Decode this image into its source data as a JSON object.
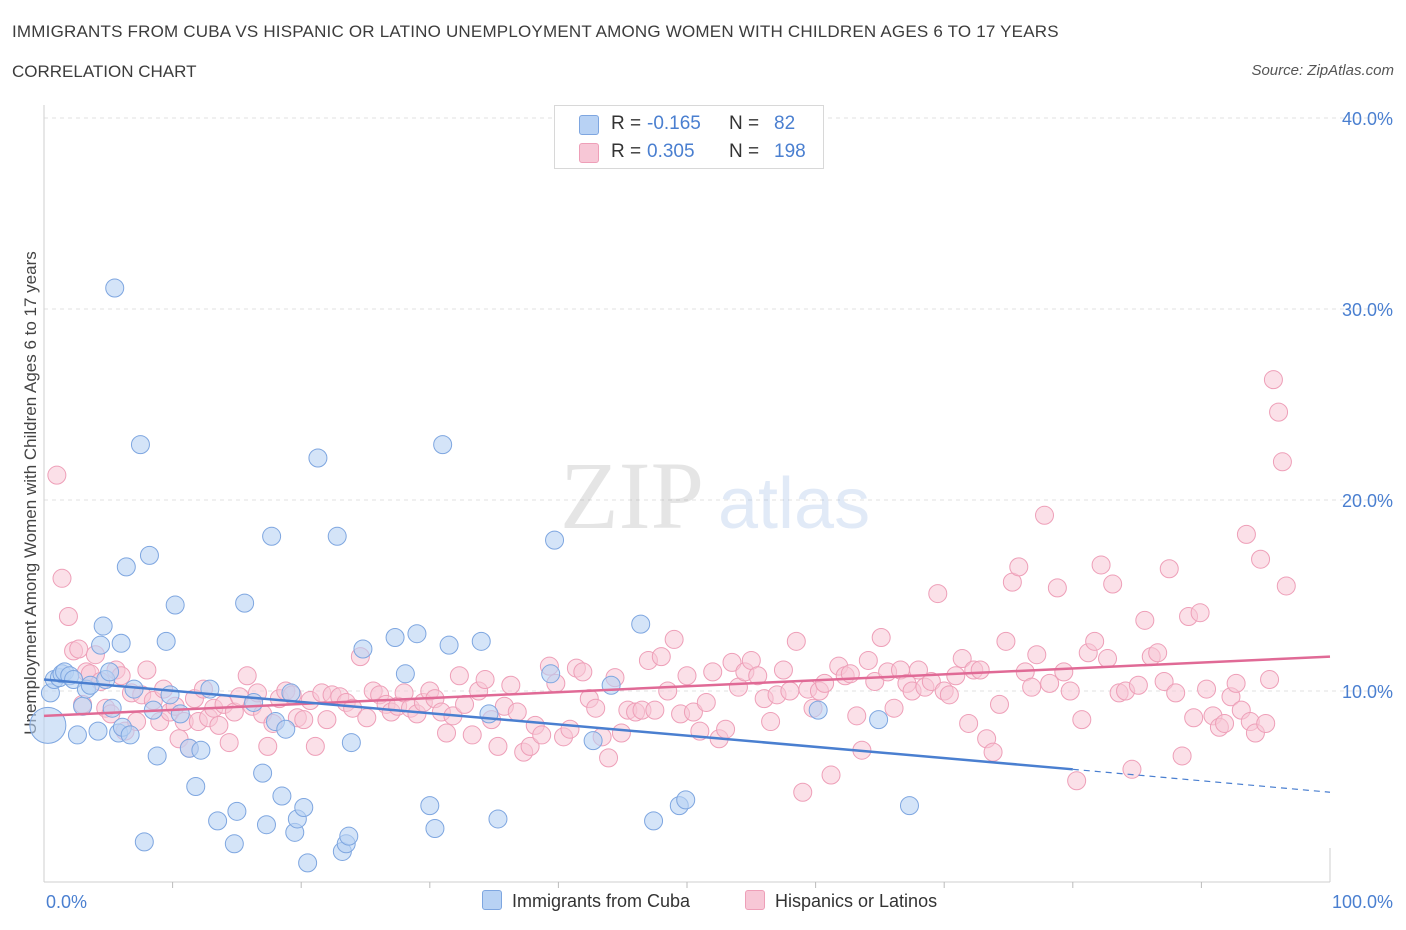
{
  "header": {
    "title": "IMMIGRANTS FROM CUBA VS HISPANIC OR LATINO UNEMPLOYMENT AMONG WOMEN WITH CHILDREN AGES 6 TO 17 YEARS",
    "subtitle": "CORRELATION CHART",
    "source": "Source: ZipAtlas.com"
  },
  "legend": {
    "rows": [
      {
        "r_label": "R =",
        "r_value": "-0.165",
        "n_label": "N =",
        "n_value": "82"
      },
      {
        "r_label": "R =",
        "r_value": "0.305",
        "n_label": "N =",
        "n_value": "198"
      }
    ]
  },
  "bottom_legend": {
    "cuba": "Immigrants from Cuba",
    "hispanic": "Hispanics or Latinos"
  },
  "watermark": {
    "zip": "ZIP",
    "atlas": "atlas"
  },
  "colors": {
    "blue": "#4a7fd0",
    "blue_fill": "#b8d2f4",
    "blue_stroke": "#7ea6e0",
    "pink": "#e06a96",
    "pink_fill": "#f7c7d6",
    "pink_stroke": "#ee9fb8"
  },
  "chart_data": {
    "type": "scatter",
    "title": "IMMIGRANTS FROM CUBA VS HISPANIC OR LATINO UNEMPLOYMENT AMONG WOMEN WITH CHILDREN AGES 6 TO 17 YEARS",
    "ylabel": "Unemployment Among Women with Children Ages 6 to 17 years",
    "xlabel": "",
    "xlim": [
      0,
      100
    ],
    "ylim": [
      0,
      40
    ],
    "x_tick_labels": [
      "0.0%",
      "100.0%"
    ],
    "y_ticks": [
      10,
      20,
      30,
      40
    ],
    "y_tick_labels": [
      "10.0%",
      "20.0%",
      "30.0%",
      "40.0%"
    ],
    "grid": true,
    "legend_placement": "top-center",
    "series": [
      {
        "name": "Immigrants from Cuba",
        "r": -0.165,
        "n": 82,
        "trend": {
          "x0": 0,
          "y0": 10.6,
          "x1": 80,
          "y1": 5.9,
          "dash_to_x": 100,
          "dash_to_y": 4.7
        },
        "points": [
          [
            0.3,
            8.2
          ],
          [
            0.5,
            9.9
          ],
          [
            0.8,
            10.6
          ],
          [
            1.2,
            10.7
          ],
          [
            1.4,
            10.9
          ],
          [
            1.6,
            11.0
          ],
          [
            2.0,
            10.8
          ],
          [
            2.3,
            10.6
          ],
          [
            2.6,
            7.7
          ],
          [
            3.0,
            9.2
          ],
          [
            3.3,
            10.1
          ],
          [
            3.6,
            10.3
          ],
          [
            4.2,
            7.9
          ],
          [
            4.4,
            12.4
          ],
          [
            4.6,
            13.4
          ],
          [
            4.8,
            10.6
          ],
          [
            5.1,
            11.0
          ],
          [
            5.3,
            9.1
          ],
          [
            5.5,
            31.1
          ],
          [
            5.8,
            7.8
          ],
          [
            6.0,
            12.5
          ],
          [
            6.1,
            8.1
          ],
          [
            6.4,
            16.5
          ],
          [
            6.7,
            7.7
          ],
          [
            7.0,
            10.1
          ],
          [
            7.5,
            22.9
          ],
          [
            7.8,
            2.1
          ],
          [
            8.2,
            17.1
          ],
          [
            8.5,
            9.0
          ],
          [
            8.8,
            6.6
          ],
          [
            9.5,
            12.6
          ],
          [
            9.8,
            9.8
          ],
          [
            10.2,
            14.5
          ],
          [
            10.6,
            8.8
          ],
          [
            11.3,
            7.0
          ],
          [
            11.8,
            5.0
          ],
          [
            12.2,
            6.9
          ],
          [
            12.9,
            10.1
          ],
          [
            13.5,
            3.2
          ],
          [
            14.8,
            2.0
          ],
          [
            15.0,
            3.7
          ],
          [
            15.6,
            14.6
          ],
          [
            16.3,
            9.4
          ],
          [
            17.0,
            5.7
          ],
          [
            17.3,
            3.0
          ],
          [
            17.7,
            18.1
          ],
          [
            18.0,
            8.4
          ],
          [
            18.5,
            4.5
          ],
          [
            18.8,
            8.0
          ],
          [
            19.2,
            9.9
          ],
          [
            19.5,
            2.6
          ],
          [
            19.7,
            3.3
          ],
          [
            20.2,
            3.9
          ],
          [
            20.5,
            1.0
          ],
          [
            21.3,
            22.2
          ],
          [
            22.8,
            18.1
          ],
          [
            23.2,
            1.6
          ],
          [
            23.5,
            2.0
          ],
          [
            23.7,
            2.4
          ],
          [
            23.9,
            7.3
          ],
          [
            24.8,
            12.2
          ],
          [
            27.3,
            12.8
          ],
          [
            28.1,
            10.9
          ],
          [
            29.0,
            13.0
          ],
          [
            30.0,
            4.0
          ],
          [
            30.4,
            2.8
          ],
          [
            31.0,
            22.9
          ],
          [
            31.5,
            12.4
          ],
          [
            34.0,
            12.6
          ],
          [
            34.6,
            8.8
          ],
          [
            35.3,
            3.3
          ],
          [
            39.4,
            10.9
          ],
          [
            39.7,
            17.9
          ],
          [
            42.7,
            7.4
          ],
          [
            44.1,
            10.3
          ],
          [
            46.4,
            13.5
          ],
          [
            47.4,
            3.2
          ],
          [
            49.4,
            4.0
          ],
          [
            49.9,
            4.3
          ],
          [
            60.2,
            9.0
          ],
          [
            64.9,
            8.5
          ],
          [
            67.3,
            4.0
          ]
        ]
      },
      {
        "name": "Hispanics or Latinos",
        "r": 0.305,
        "n": 198,
        "trend": {
          "x0": 0,
          "y0": 8.7,
          "x1": 100,
          "y1": 11.8
        },
        "points": [
          [
            1.0,
            21.3
          ],
          [
            1.4,
            15.9
          ],
          [
            1.9,
            13.9
          ],
          [
            2.3,
            12.1
          ],
          [
            2.7,
            12.2
          ],
          [
            3.0,
            9.3
          ],
          [
            3.3,
            11.0
          ],
          [
            3.6,
            10.9
          ],
          [
            4.0,
            11.9
          ],
          [
            4.4,
            10.5
          ],
          [
            4.8,
            9.1
          ],
          [
            5.2,
            8.8
          ],
          [
            5.6,
            11.1
          ],
          [
            6.0,
            10.8
          ],
          [
            6.3,
            7.9
          ],
          [
            6.8,
            9.9
          ],
          [
            7.2,
            8.4
          ],
          [
            7.6,
            9.8
          ],
          [
            8.0,
            11.1
          ],
          [
            8.5,
            9.5
          ],
          [
            9.0,
            8.4
          ],
          [
            9.3,
            10.1
          ],
          [
            9.8,
            8.9
          ],
          [
            10.2,
            9.2
          ],
          [
            10.5,
            7.5
          ],
          [
            10.9,
            8.4
          ],
          [
            11.3,
            7.0
          ],
          [
            11.7,
            9.6
          ],
          [
            12.0,
            8.4
          ],
          [
            12.4,
            10.1
          ],
          [
            12.8,
            8.6
          ],
          [
            13.2,
            9.1
          ],
          [
            13.6,
            8.2
          ],
          [
            14.0,
            9.3
          ],
          [
            14.4,
            7.3
          ],
          [
            14.8,
            8.9
          ],
          [
            15.2,
            9.7
          ],
          [
            15.8,
            10.8
          ],
          [
            16.2,
            9.2
          ],
          [
            16.6,
            9.9
          ],
          [
            17.0,
            8.8
          ],
          [
            17.4,
            7.1
          ],
          [
            17.8,
            8.3
          ],
          [
            18.3,
            9.6
          ],
          [
            18.8,
            10.0
          ],
          [
            19.3,
            9.8
          ],
          [
            19.7,
            8.6
          ],
          [
            20.2,
            8.5
          ],
          [
            20.7,
            9.5
          ],
          [
            21.1,
            7.1
          ],
          [
            21.6,
            9.9
          ],
          [
            22.0,
            8.5
          ],
          [
            22.4,
            9.8
          ],
          [
            23.0,
            9.7
          ],
          [
            23.5,
            9.4
          ],
          [
            24.0,
            9.1
          ],
          [
            24.6,
            11.8
          ],
          [
            25.1,
            8.6
          ],
          [
            25.6,
            10.0
          ],
          [
            26.1,
            9.8
          ],
          [
            26.6,
            9.3
          ],
          [
            27.0,
            8.9
          ],
          [
            27.5,
            9.2
          ],
          [
            28.0,
            9.9
          ],
          [
            28.5,
            9.1
          ],
          [
            29.0,
            8.8
          ],
          [
            29.5,
            9.4
          ],
          [
            30.0,
            10.0
          ],
          [
            30.4,
            9.6
          ],
          [
            30.9,
            8.9
          ],
          [
            31.3,
            7.8
          ],
          [
            31.8,
            8.7
          ],
          [
            32.3,
            10.8
          ],
          [
            32.7,
            9.3
          ],
          [
            33.3,
            7.7
          ],
          [
            33.8,
            10.0
          ],
          [
            34.3,
            10.6
          ],
          [
            34.8,
            8.5
          ],
          [
            35.3,
            7.1
          ],
          [
            35.8,
            9.2
          ],
          [
            36.3,
            10.3
          ],
          [
            36.8,
            8.9
          ],
          [
            37.3,
            6.8
          ],
          [
            37.8,
            7.1
          ],
          [
            38.2,
            8.2
          ],
          [
            38.7,
            7.7
          ],
          [
            39.3,
            11.3
          ],
          [
            39.8,
            10.4
          ],
          [
            40.4,
            7.6
          ],
          [
            40.9,
            8.0
          ],
          [
            41.4,
            11.2
          ],
          [
            41.9,
            11.0
          ],
          [
            42.4,
            9.6
          ],
          [
            42.9,
            9.1
          ],
          [
            43.4,
            7.6
          ],
          [
            43.9,
            6.5
          ],
          [
            44.4,
            10.7
          ],
          [
            44.9,
            7.8
          ],
          [
            45.4,
            9.0
          ],
          [
            46.0,
            8.9
          ],
          [
            46.5,
            9.0
          ],
          [
            47.0,
            11.6
          ],
          [
            47.5,
            9.0
          ],
          [
            48.0,
            11.8
          ],
          [
            48.5,
            10.0
          ],
          [
            49.0,
            12.7
          ],
          [
            49.5,
            8.8
          ],
          [
            50.0,
            10.8
          ],
          [
            50.5,
            8.9
          ],
          [
            51.0,
            7.9
          ],
          [
            51.5,
            9.4
          ],
          [
            52.0,
            11.0
          ],
          [
            52.5,
            7.5
          ],
          [
            53.0,
            8.0
          ],
          [
            53.5,
            11.5
          ],
          [
            54.0,
            10.2
          ],
          [
            54.5,
            11.0
          ],
          [
            55.0,
            11.6
          ],
          [
            55.5,
            10.8
          ],
          [
            56.0,
            9.6
          ],
          [
            56.5,
            8.4
          ],
          [
            57.0,
            9.8
          ],
          [
            57.5,
            11.1
          ],
          [
            58.0,
            10.0
          ],
          [
            58.5,
            12.6
          ],
          [
            59.0,
            4.7
          ],
          [
            59.4,
            10.1
          ],
          [
            59.8,
            9.1
          ],
          [
            60.3,
            10.0
          ],
          [
            60.7,
            10.4
          ],
          [
            61.2,
            5.6
          ],
          [
            61.8,
            11.3
          ],
          [
            62.3,
            10.8
          ],
          [
            62.7,
            10.9
          ],
          [
            63.2,
            8.7
          ],
          [
            63.6,
            6.9
          ],
          [
            64.1,
            11.6
          ],
          [
            64.6,
            10.5
          ],
          [
            65.1,
            12.8
          ],
          [
            65.6,
            11.0
          ],
          [
            66.1,
            9.1
          ],
          [
            66.6,
            11.1
          ],
          [
            67.1,
            10.4
          ],
          [
            67.5,
            10.0
          ],
          [
            68.0,
            11.1
          ],
          [
            68.5,
            10.2
          ],
          [
            69.0,
            10.5
          ],
          [
            69.5,
            15.1
          ],
          [
            70.0,
            10.0
          ],
          [
            70.4,
            9.8
          ],
          [
            70.9,
            10.8
          ],
          [
            71.4,
            11.7
          ],
          [
            71.9,
            8.3
          ],
          [
            72.3,
            11.1
          ],
          [
            72.8,
            11.1
          ],
          [
            73.3,
            7.5
          ],
          [
            73.8,
            6.8
          ],
          [
            74.3,
            9.3
          ],
          [
            74.8,
            12.6
          ],
          [
            75.3,
            15.7
          ],
          [
            75.8,
            16.5
          ],
          [
            76.3,
            11.0
          ],
          [
            76.8,
            10.2
          ],
          [
            77.2,
            11.9
          ],
          [
            77.8,
            19.2
          ],
          [
            78.2,
            10.4
          ],
          [
            78.8,
            15.4
          ],
          [
            79.3,
            11.0
          ],
          [
            79.8,
            10.0
          ],
          [
            80.3,
            5.3
          ],
          [
            80.7,
            8.5
          ],
          [
            81.2,
            12.0
          ],
          [
            81.7,
            12.6
          ],
          [
            82.2,
            16.6
          ],
          [
            82.7,
            11.7
          ],
          [
            83.1,
            15.6
          ],
          [
            83.6,
            9.9
          ],
          [
            84.1,
            10.0
          ],
          [
            84.6,
            5.9
          ],
          [
            85.1,
            10.3
          ],
          [
            85.6,
            13.7
          ],
          [
            86.1,
            11.8
          ],
          [
            86.6,
            12.0
          ],
          [
            87.1,
            10.5
          ],
          [
            87.5,
            16.4
          ],
          [
            88.0,
            9.9
          ],
          [
            88.5,
            6.6
          ],
          [
            89.0,
            13.9
          ],
          [
            89.4,
            8.6
          ],
          [
            89.9,
            14.1
          ],
          [
            90.4,
            10.1
          ],
          [
            90.9,
            8.7
          ],
          [
            91.4,
            8.1
          ],
          [
            91.8,
            8.3
          ],
          [
            92.3,
            9.7
          ],
          [
            92.7,
            10.4
          ],
          [
            93.1,
            9.0
          ],
          [
            93.5,
            18.2
          ],
          [
            93.8,
            8.4
          ],
          [
            94.2,
            7.8
          ],
          [
            94.6,
            16.9
          ],
          [
            95.0,
            8.3
          ],
          [
            95.3,
            10.6
          ],
          [
            95.6,
            26.3
          ],
          [
            96.0,
            24.6
          ],
          [
            96.3,
            22.0
          ],
          [
            96.6,
            15.5
          ]
        ]
      }
    ]
  }
}
